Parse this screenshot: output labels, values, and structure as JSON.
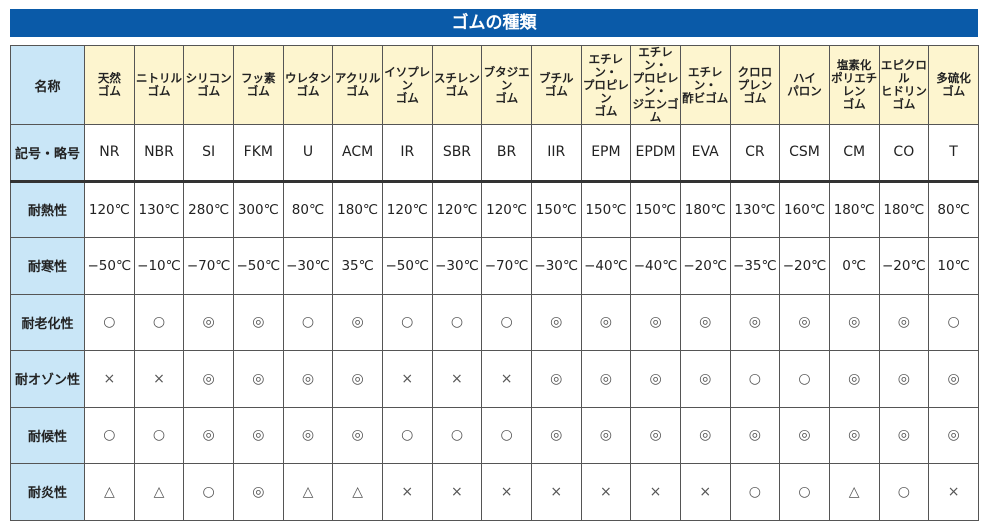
{
  "title": "ゴムの種類",
  "row_headers": {
    "name": "名称",
    "symbol": "記号・略号",
    "heat": "耐熱性",
    "cold": "耐寒性",
    "aging": "耐老化性",
    "ozone": "耐オゾン性",
    "weather": "耐候性",
    "flame": "耐炎性"
  },
  "names": [
    "天然\nゴム",
    "ニトリル\nゴム",
    "シリコン\nゴム",
    "フッ素\nゴム",
    "ウレタン\nゴム",
    "アクリル\nゴム",
    "イソプレン\nゴム",
    "スチレン\nゴム",
    "ブタジエン\nゴム",
    "ブチル\nゴム",
    "エチレン・\nプロピレン\nゴム",
    "エチレン・\nプロピレン・\nジエンゴム",
    "エチレン・\n酢ビゴム",
    "クロロ\nプレン\nゴム",
    "ハイ\nパロン",
    "塩素化\nポリエチレン\nゴム",
    "エピクロル\nヒドリン\nゴム",
    "多硫化\nゴム"
  ],
  "symbols": [
    "NR",
    "NBR",
    "SI",
    "FKM",
    "U",
    "ACM",
    "IR",
    "SBR",
    "BR",
    "IIR",
    "EPM",
    "EPDM",
    "EVA",
    "CR",
    "CSM",
    "CM",
    "CO",
    "T"
  ],
  "heat": [
    "120℃",
    "130℃",
    "280℃",
    "300℃",
    "80℃",
    "180℃",
    "120℃",
    "120℃",
    "120℃",
    "150℃",
    "150℃",
    "150℃",
    "180℃",
    "130℃",
    "160℃",
    "180℃",
    "180℃",
    "80℃"
  ],
  "cold": [
    "−50℃",
    "−10℃",
    "−70℃",
    "−50℃",
    "−30℃",
    "35℃",
    "−50℃",
    "−30℃",
    "−70℃",
    "−30℃",
    "−40℃",
    "−40℃",
    "−20℃",
    "−35℃",
    "−20℃",
    "0℃",
    "−20℃",
    "10℃"
  ],
  "aging": [
    "○",
    "○",
    "◎",
    "◎",
    "○",
    "◎",
    "○",
    "○",
    "○",
    "◎",
    "◎",
    "◎",
    "◎",
    "◎",
    "◎",
    "◎",
    "◎",
    "○"
  ],
  "ozone": [
    "×",
    "×",
    "◎",
    "◎",
    "◎",
    "◎",
    "×",
    "×",
    "×",
    "◎",
    "◎",
    "◎",
    "◎",
    "○",
    "○",
    "◎",
    "◎",
    "◎"
  ],
  "weather": [
    "○",
    "○",
    "◎",
    "◎",
    "◎",
    "◎",
    "○",
    "○",
    "○",
    "◎",
    "◎",
    "◎",
    "◎",
    "◎",
    "◎",
    "◎",
    "◎",
    "◎"
  ],
  "flame": [
    "△",
    "△",
    "○",
    "◎",
    "△",
    "△",
    "×",
    "×",
    "×",
    "×",
    "×",
    "×",
    "×",
    "○",
    "○",
    "△",
    "○",
    "×"
  ],
  "colors": {
    "title_bar": "#0a5aa8",
    "row_header_bg": "#c9e6f7",
    "column_header_bg": "#fdf5cf"
  }
}
